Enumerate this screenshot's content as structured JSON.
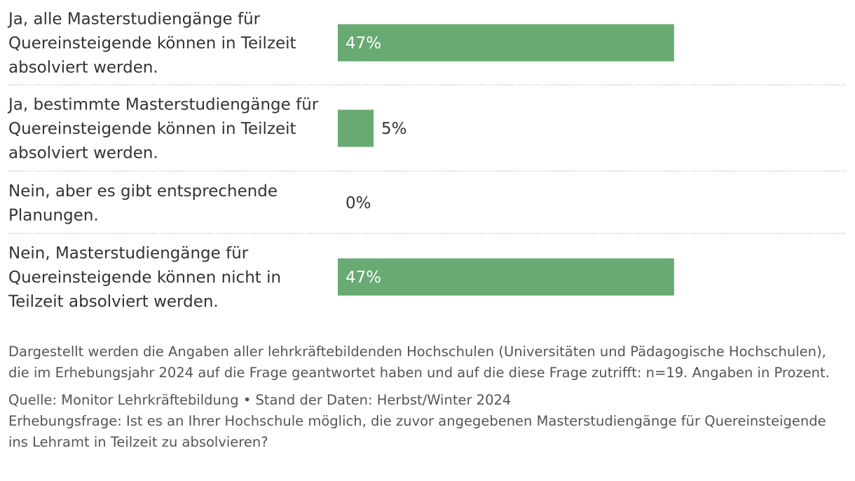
{
  "chart_data": {
    "type": "bar",
    "orientation": "horizontal",
    "categories": [
      "Ja, alle Masterstudiengänge für Quereinsteigende können in Teilzeit absolviert werden.",
      "Ja, bestimmte Masterstudiengänge für Quereinsteigende können in Teilzeit absolviert werden.",
      "Nein, aber es gibt entsprechende Planungen.",
      "Nein, Masterstudiengänge für Quereinsteigende können nicht in Teilzeit absolviert werden."
    ],
    "category_lines": [
      [
        "Ja, alle Masterstudiengänge für",
        "Quereinsteigende können in Teilzeit",
        "absolviert werden."
      ],
      [
        "Ja, bestimmte Masterstudiengänge für",
        "Quereinsteigende können in Teilzeit",
        "absolviert werden."
      ],
      [
        "Nein, aber es gibt entsprechende",
        "Planungen."
      ],
      [
        "Nein, Masterstudiengänge für",
        "Quereinsteigende können nicht in",
        "Teilzeit absolviert werden."
      ]
    ],
    "values": [
      47,
      5,
      0,
      47
    ],
    "value_labels": [
      "47%",
      "5%",
      "0%",
      "47%"
    ],
    "unit": "%",
    "xlim": [
      0,
      100
    ],
    "grid": false,
    "colors": {
      "bar": "#67aa72",
      "label_inside": "#ffffff",
      "label_outside": "#333333",
      "separator": "#c8c8c8"
    }
  },
  "notes": {
    "description": "Dargestellt werden die Angaben aller lehrkräftebildenden Hochschulen (Universitäten und Pädagogische Hochschulen), die im Erhebungsjahr 2024 auf die Frage geantwortet haben und auf die diese Frage zutrifft: n=19. Angaben in Prozent.",
    "source": "Quelle: Monitor Lehrkräftebildung • Stand der Daten: Herbst/Winter 2024",
    "question": "Erhebungsfrage: Ist es an Ihrer Hochschule möglich, die zuvor angegebenen Masterstudiengänge für Quereinsteigende ins Lehramt in Teilzeit zu absolvieren?"
  }
}
